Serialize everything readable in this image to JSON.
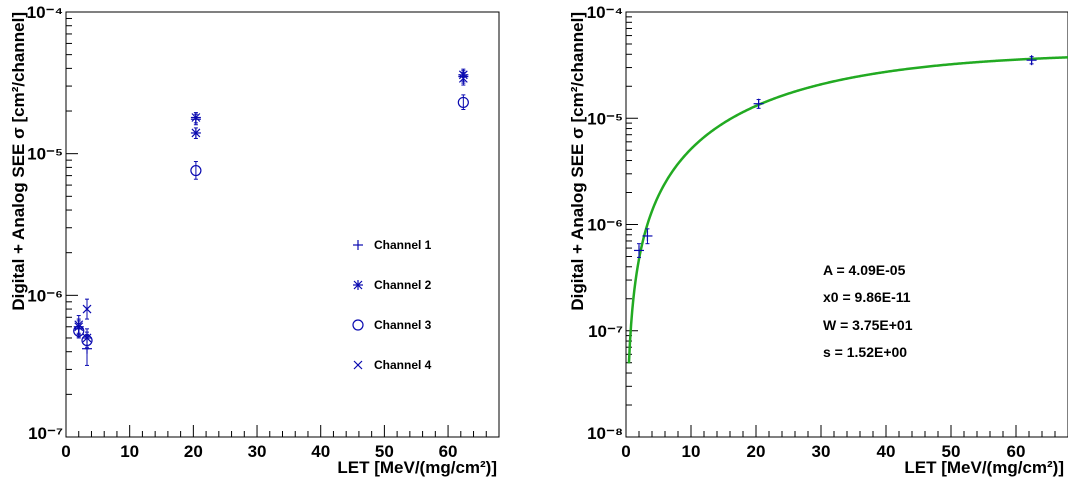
{
  "chart_data": [
    {
      "type": "scatter",
      "xlabel": "LET [MeV/(mg/cm²)]",
      "ylabel": "Digital + Analog SEE σ [cm²/channel]",
      "xlim": [
        0,
        68
      ],
      "ylim": [
        1e-07,
        0.0001
      ],
      "y_scale": "log",
      "x_ticks": [
        0,
        10,
        20,
        30,
        40,
        50,
        60
      ],
      "y_ticks": [
        {
          "value": 1e-07,
          "label": "10⁻⁷"
        },
        {
          "value": 1e-06,
          "label": "10⁻⁶"
        },
        {
          "value": 1e-05,
          "label": "10⁻⁵"
        },
        {
          "value": 0.0001,
          "label": "10⁻⁴"
        }
      ],
      "legend_position": "right",
      "series": [
        {
          "name": "Channel 1",
          "marker": "plus",
          "points": [
            {
              "x": 2.0,
              "y": 5.8e-07,
              "ylo": 5.1e-07,
              "yhi": 6.6e-07
            },
            {
              "x": 3.3,
              "y": 4.2e-07,
              "ylo": 3.2e-07,
              "yhi": 5.3e-07
            },
            {
              "x": 20.4,
              "y": 1.75e-05,
              "ylo": 1.6e-05,
              "yhi": 1.9e-05
            },
            {
              "x": 62.4,
              "y": 3.5e-05,
              "ylo": 3.15e-05,
              "yhi": 3.85e-05
            }
          ]
        },
        {
          "name": "Channel 2",
          "marker": "star",
          "points": [
            {
              "x": 2.0,
              "y": 6e-07,
              "ylo": 5.3e-07,
              "yhi": 6.8e-07
            },
            {
              "x": 3.3,
              "y": 5e-07,
              "ylo": 4.3e-07,
              "yhi": 5.8e-07
            },
            {
              "x": 20.4,
              "y": 1.8e-05,
              "ylo": 1.65e-05,
              "yhi": 1.95e-05
            },
            {
              "x": 20.4,
              "y": 1.4e-05,
              "ylo": 1.28e-05,
              "yhi": 1.52e-05
            },
            {
              "x": 62.4,
              "y": 3.6e-05,
              "ylo": 3.25e-05,
              "yhi": 3.95e-05
            }
          ]
        },
        {
          "name": "Channel 3",
          "marker": "circle",
          "points": [
            {
              "x": 2.0,
              "y": 5.6e-07,
              "ylo": 5e-07,
              "yhi": 6.3e-07
            },
            {
              "x": 3.3,
              "y": 4.8e-07,
              "ylo": 4.2e-07,
              "yhi": 5.5e-07
            },
            {
              "x": 20.4,
              "y": 7.6e-06,
              "ylo": 6.6e-06,
              "yhi": 8.8e-06
            },
            {
              "x": 62.4,
              "y": 2.3e-05,
              "ylo": 2.05e-05,
              "yhi": 2.6e-05
            }
          ]
        },
        {
          "name": "Channel 4",
          "marker": "cross",
          "points": [
            {
              "x": 2.0,
              "y": 6.2e-07,
              "ylo": 5.4e-07,
              "yhi": 7.2e-07
            },
            {
              "x": 3.3,
              "y": 8e-07,
              "ylo": 6.8e-07,
              "yhi": 9.4e-07
            },
            {
              "x": 62.4,
              "y": 3.4e-05,
              "ylo": 3.05e-05,
              "yhi": 3.75e-05
            }
          ]
        }
      ]
    },
    {
      "type": "line",
      "xlabel": "LET [MeV/(mg/cm²)]",
      "ylabel": "Digital + Analog SEE σ [cm²/channel]",
      "xlim": [
        0,
        68
      ],
      "ylim": [
        1e-08,
        0.0001
      ],
      "y_scale": "log",
      "x_ticks": [
        0,
        10,
        20,
        30,
        40,
        50,
        60
      ],
      "y_ticks": [
        {
          "value": 1e-08,
          "label": "10⁻⁸"
        },
        {
          "value": 1e-07,
          "label": "10⁻⁷"
        },
        {
          "value": 1e-06,
          "label": "10⁻⁶"
        },
        {
          "value": 1e-05,
          "label": "10⁻⁵"
        },
        {
          "value": 0.0001,
          "label": "10⁻⁴"
        }
      ],
      "fit": {
        "function": "weibull",
        "A": 4.09e-05,
        "x0": 9.86e-11,
        "W": 37.5,
        "s": 1.52,
        "color": "#22aa22"
      },
      "fit_labels": [
        "A = 4.09E-05",
        "x0 = 9.86E-11",
        "W = 3.75E+01",
        "s = 1.52E+00"
      ],
      "points": [
        {
          "x": 2.0,
          "y": 5.7e-07,
          "ylo": 4.9e-07,
          "yhi": 6.6e-07
        },
        {
          "x": 3.3,
          "y": 7.8e-07,
          "ylo": 6.6e-07,
          "yhi": 9.1e-07
        },
        {
          "x": 20.4,
          "y": 1.37e-05,
          "ylo": 1.24e-05,
          "yhi": 1.5e-05
        },
        {
          "x": 62.4,
          "y": 3.52e-05,
          "ylo": 3.25e-05,
          "yhi": 3.8e-05
        }
      ]
    }
  ]
}
